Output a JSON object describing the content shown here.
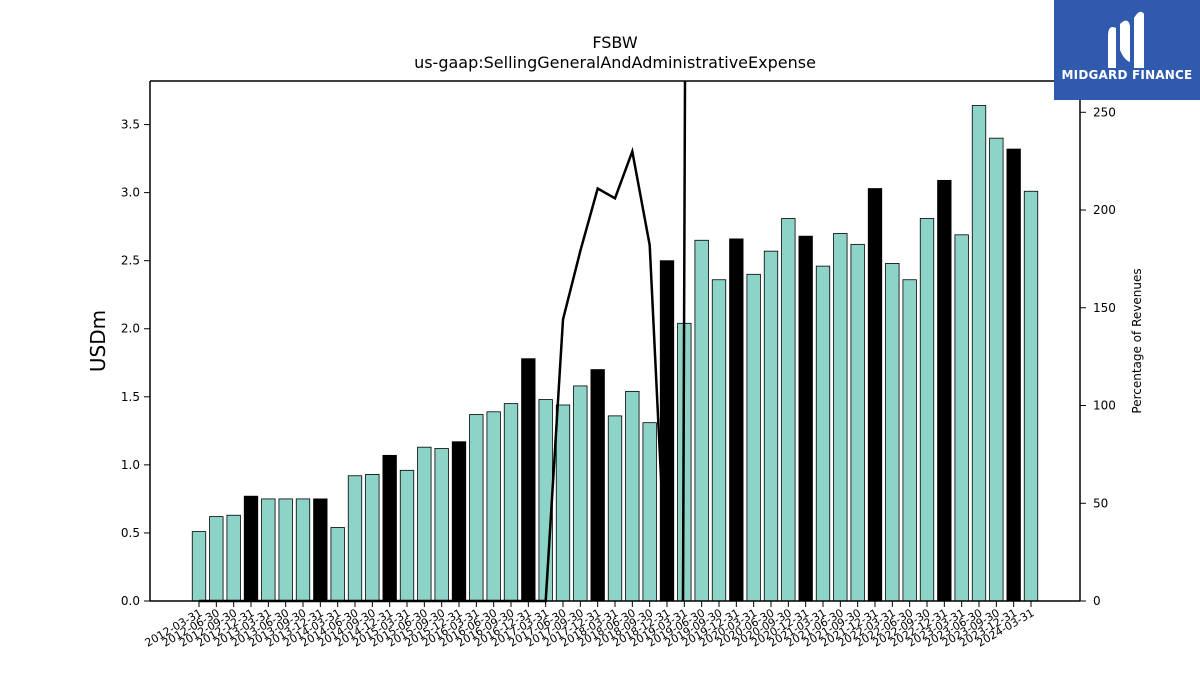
{
  "logo": {
    "text": "MIDGARD FINANCE"
  },
  "chart_data": {
    "type": "bar",
    "title": "FSBW",
    "subtitle": "us-gaap:SellingGeneralAndAdministrativeExpense",
    "ylabel": "USDm",
    "y2label": "Percentage of Revenues",
    "ylim": [
      0,
      3.82
    ],
    "y2lim": [
      0,
      266
    ],
    "yticks": [
      "0.0",
      "0.5",
      "1.0",
      "1.5",
      "2.0",
      "2.5",
      "3.0",
      "3.5"
    ],
    "y2ticks": [
      "0",
      "50",
      "100",
      "150",
      "200",
      "250"
    ],
    "colors": {
      "bar": "#8dd3c7",
      "q4_bar": "#000000",
      "line": "#000000"
    },
    "categories": [
      "2012-03-31",
      "2012-06-30",
      "2012-09-30",
      "2012-12-31",
      "2013-03-31",
      "2013-06-30",
      "2013-09-30",
      "2013-12-31",
      "2014-03-31",
      "2014-06-30",
      "2014-09-30",
      "2014-12-31",
      "2015-03-31",
      "2015-06-30",
      "2015-09-30",
      "2015-12-31",
      "2016-03-31",
      "2016-06-30",
      "2016-09-30",
      "2016-12-31",
      "2017-03-31",
      "2017-06-30",
      "2017-09-30",
      "2017-12-31",
      "2018-03-31",
      "2018-06-30",
      "2018-09-30",
      "2018-12-31",
      "2019-03-31",
      "2019-06-30",
      "2019-09-30",
      "2019-12-31",
      "2020-03-31",
      "2020-06-30",
      "2020-09-30",
      "2020-12-31",
      "2021-03-31",
      "2021-06-30",
      "2021-09-30",
      "2021-12-31",
      "2022-03-31",
      "2022-06-30",
      "2022-09-30",
      "2022-12-31",
      "2023-03-31",
      "2023-06-30",
      "2023-09-30",
      "2023-12-31",
      "2024-03-31"
    ],
    "series": [
      {
        "type": "bar",
        "values": [
          0.51,
          0.62,
          0.63,
          0.77,
          0.75,
          0.75,
          0.75,
          0.75,
          0.54,
          0.92,
          0.93,
          1.07,
          0.96,
          1.13,
          1.12,
          1.17,
          1.37,
          1.39,
          1.45,
          1.78,
          1.48,
          1.44,
          1.58,
          1.7,
          1.36,
          1.54,
          1.31,
          2.5,
          2.04,
          2.65,
          2.36,
          2.66,
          2.4,
          2.57,
          2.81,
          2.68,
          2.46,
          2.7,
          2.62,
          3.03,
          2.48,
          2.36,
          2.81,
          3.09,
          2.69,
          3.64,
          3.4,
          3.32,
          3.01
        ]
      },
      {
        "type": "line",
        "axis": "right",
        "values": [
          0,
          0,
          0,
          0,
          0,
          0,
          0,
          0,
          0,
          0,
          0,
          0,
          0,
          0,
          0,
          0,
          0,
          0,
          0,
          0,
          0,
          144,
          179,
          211,
          206,
          230,
          182,
          0,
          null,
          null,
          null,
          null,
          null,
          null,
          null,
          null,
          null,
          null,
          null,
          null,
          null,
          null,
          null,
          null,
          null,
          null,
          null,
          null,
          null
        ]
      }
    ]
  }
}
